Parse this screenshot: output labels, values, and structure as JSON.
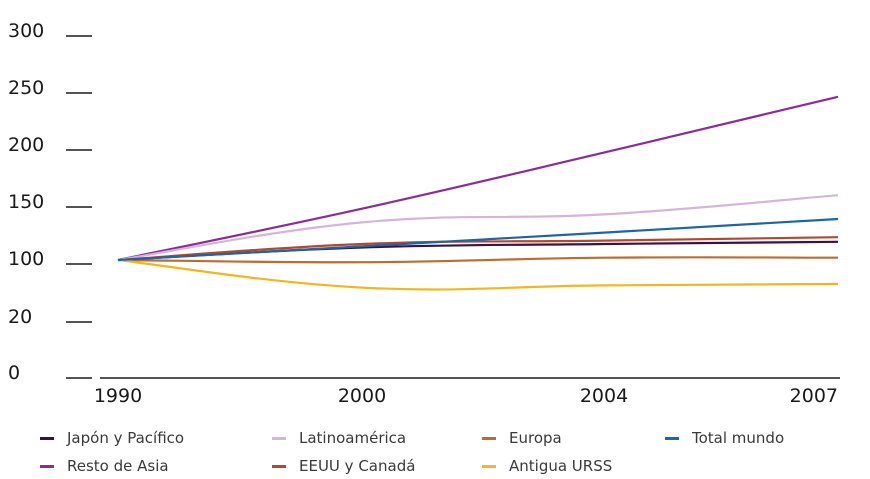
{
  "chart_data": {
    "type": "line",
    "x": [
      "1990",
      "2000",
      "2004",
      "2007"
    ],
    "y_ticks": [
      "300",
      "250",
      "200",
      "150",
      "100",
      "20",
      "0"
    ],
    "series": [
      {
        "name": "Japón y Pacífico",
        "color": "#3d0f4a",
        "values": [
          100,
          111,
          114,
          116
        ]
      },
      {
        "name": "Resto de Asia",
        "color": "#8b2c98",
        "values": [
          100,
          145,
          195,
          244
        ]
      },
      {
        "name": "Latinoamérica",
        "color": "#d6b3db",
        "values": [
          100,
          133,
          140,
          157
        ]
      },
      {
        "name": "EEUU y Canadá",
        "color": "#b5472c",
        "values": [
          100,
          114,
          117,
          120
        ]
      },
      {
        "name": "Europa",
        "color": "#c06a2e",
        "values": [
          100,
          97,
          102,
          102
        ]
      },
      {
        "name": "Antigua URSS",
        "color": "#f5b51e",
        "values": [
          100,
          62,
          65,
          67
        ]
      },
      {
        "name": "Total mundo",
        "color": "#1a66a6",
        "values": [
          100,
          112,
          124,
          136
        ]
      }
    ],
    "legend_order": [
      "Japón y Pacífico",
      "Latinoamérica",
      "Europa",
      "Total mundo",
      "Resto de Asia",
      "EEUU y Canadá",
      "Antigua URSS"
    ],
    "legend_placement": "bottom",
    "grid": false
  }
}
